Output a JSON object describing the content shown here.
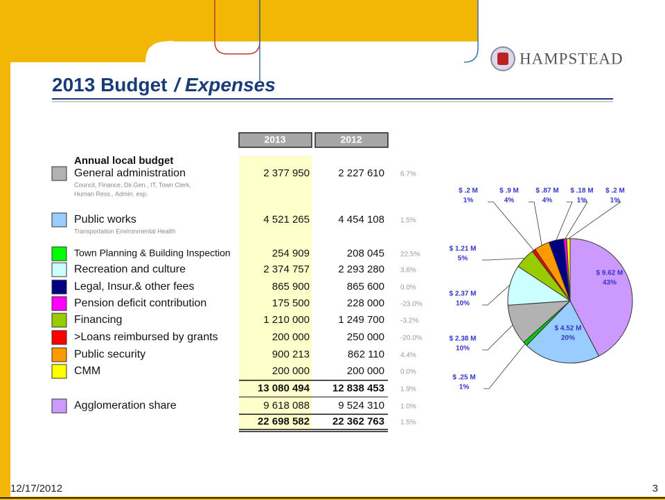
{
  "header": {
    "logo": "HAMPSTEAD",
    "title": "2013 Budget",
    "title_emphasis": "/ Expenses"
  },
  "table": {
    "columns": [
      "2013",
      "2012"
    ],
    "heading": "Annual local budget",
    "rows": [
      {
        "label": "General administration",
        "sub": [
          "Council, Finance, Dir.Gen., IT, Town Clerk,",
          "Human Ress., Admin. exp."
        ],
        "color": "#b2b2b2",
        "values": [
          "2 377 950",
          "2 227 610",
          "6.7%"
        ]
      },
      {
        "label": "Public works",
        "sub": [
          "Transportation Environmental Health"
        ],
        "color": "#99ccff",
        "values": [
          "4 521 265",
          "4 454 108",
          "1.5%"
        ]
      },
      {
        "label": "Town Planning & Building Inspection",
        "color": "#00ff00",
        "values": [
          "254 909",
          "208 045",
          "22.5%"
        ]
      },
      {
        "label": "Recreation and culture",
        "color": "#ccffff",
        "values": [
          "2 374 757",
          "2 293 280",
          "3.6%"
        ]
      },
      {
        "label": "Legal, Insur.& other fees",
        "color": "#000080",
        "values": [
          "865 900",
          "865 600",
          "0.0%"
        ]
      },
      {
        "label": "Pension deficit contribution",
        "color": "#ff00ff",
        "values": [
          "175 500",
          "228 000",
          "-23.0%"
        ]
      },
      {
        "label": "Financing",
        "color": "#99cc00",
        "values": [
          "1 210 000",
          "1 249 700",
          "-3.2%"
        ]
      },
      {
        "label": ">Loans reimbursed by grants",
        "color": "#ff0000",
        "values": [
          "200 000",
          "250 000",
          "-20.0%"
        ]
      },
      {
        "label": "Public security",
        "color": "#ff9900",
        "values": [
          "900 213",
          "862 110",
          "4.4%"
        ]
      },
      {
        "label": "CMM",
        "color": "#ffff00",
        "values": [
          "200 000",
          "200 000",
          "0.0%"
        ]
      }
    ],
    "subtotal": [
      "13 080 494",
      "12 838 453",
      "1.9%"
    ],
    "share": {
      "label": "Agglomeration share",
      "color": "#cc99ff",
      "values": [
        "9 618 088",
        "9 524 310",
        "1.0%"
      ]
    },
    "total": [
      "22 698 582",
      "22 362 763",
      "1.5%"
    ]
  },
  "chart_data": {
    "type": "pie",
    "values": [
      9.62,
      4.52,
      0.25,
      2.38,
      2.37,
      1.21,
      0.2,
      0.9,
      0.87,
      0.18,
      0.2
    ],
    "value_labels": [
      "$ 9.62 M",
      "$ 4.52 M",
      "$ .25 M",
      "$ 2.38 M",
      "$ 2.37 M",
      "$ 1.21 M",
      "$ .2 M",
      "$ .9 M",
      "$ .87 M",
      "$ .18 M",
      "$ .2 M"
    ],
    "percent_labels": [
      "43%",
      "20%",
      "1%",
      "10%",
      "10%",
      "5%",
      "1%",
      "4%",
      "4%",
      "1%",
      "1%"
    ],
    "colors": [
      "#cc99ff",
      "#99ccff",
      "#00cc00",
      "#b2b2b2",
      "#ccffff",
      "#99cc00",
      "#ff0000",
      "#ff9900",
      "#000080",
      "#ff00ff",
      "#ffff00"
    ]
  },
  "footer": {
    "date": "12/17/2012",
    "page": "3"
  }
}
